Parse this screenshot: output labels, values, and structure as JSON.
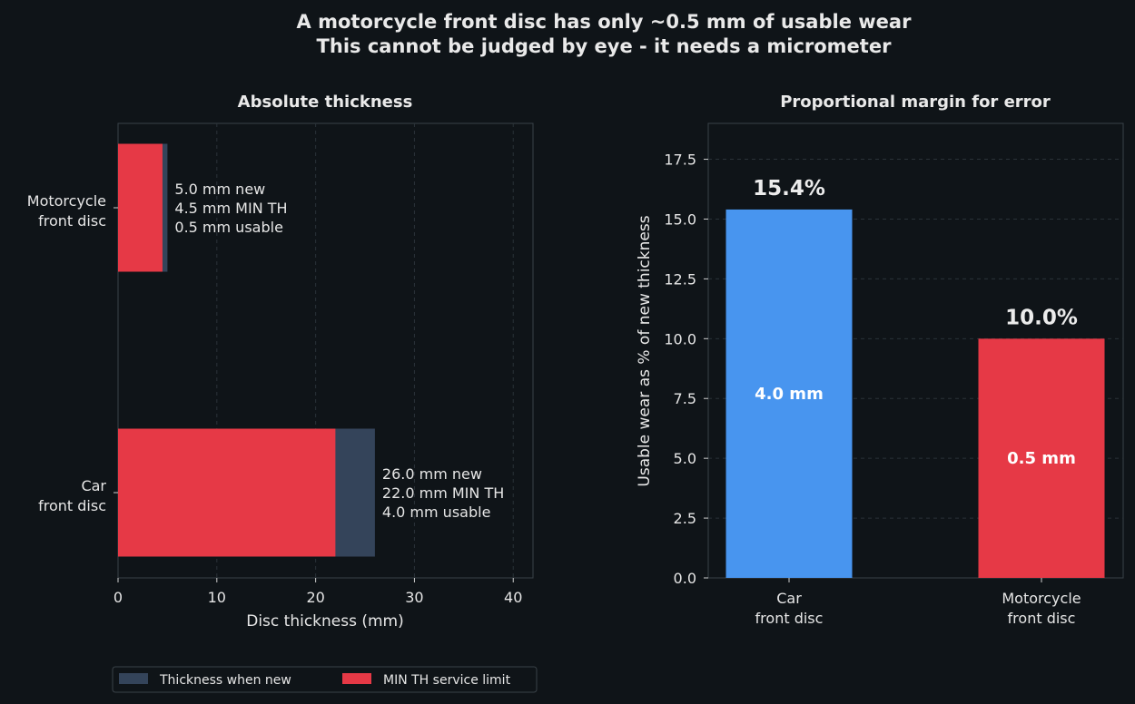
{
  "title_line1": "A motorcycle front disc has only ~0.5 mm of usable wear",
  "title_line2": "This cannot be judged by eye - it needs a micrometer",
  "colors": {
    "background": "#0f1418",
    "new": "#34445a",
    "min": "#e63946",
    "blue": "#4895ef",
    "grid": "#2a3238",
    "spine": "#3a4248"
  },
  "chart_data": [
    {
      "type": "bar",
      "orientation": "horizontal",
      "title": "Absolute thickness",
      "xlabel": "Disc thickness (mm)",
      "xlim": [
        0,
        42
      ],
      "xticks": [
        "0",
        "10",
        "20",
        "30",
        "40"
      ],
      "categories": [
        [
          "Motorcycle",
          "front disc"
        ],
        [
          "Car",
          "front disc"
        ]
      ],
      "series": [
        {
          "name": "Thickness when new",
          "values": [
            5.0,
            26.0
          ]
        },
        {
          "name": "MIN TH service limit",
          "values": [
            4.5,
            22.0
          ]
        }
      ],
      "annotations": [
        [
          "5.0 mm new",
          "4.5 mm MIN TH",
          "0.5 mm usable"
        ],
        [
          "26.0 mm new",
          "22.0 mm MIN TH",
          "4.0 mm usable"
        ]
      ],
      "grid": true,
      "legend": "bottom"
    },
    {
      "type": "bar",
      "orientation": "vertical",
      "title": "Proportional margin for error",
      "ylabel": "Usable wear as % of new thickness",
      "ylim": [
        0,
        19
      ],
      "yticks": [
        "0.0",
        "2.5",
        "5.0",
        "7.5",
        "10.0",
        "12.5",
        "15.0",
        "17.5"
      ],
      "categories": [
        [
          "Car",
          "front disc"
        ],
        [
          "Motorcycle",
          "front disc"
        ]
      ],
      "values": [
        15.4,
        10.0
      ],
      "value_labels": [
        "15.4%",
        "10.0%"
      ],
      "inner_labels": [
        "4.0 mm",
        "0.5 mm"
      ],
      "grid": true
    }
  ]
}
